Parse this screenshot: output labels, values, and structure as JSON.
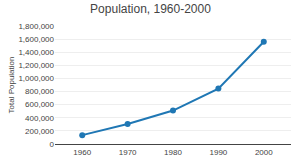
{
  "chart_data": {
    "type": "line",
    "title": "Population, 1960-2000",
    "ylabel": "Total Population",
    "x": [
      1960,
      1970,
      1980,
      1990,
      2000
    ],
    "values": [
      135000,
      305000,
      510000,
      845000,
      1560000
    ],
    "xlim": [
      1954,
      2006
    ],
    "ylim": [
      0,
      1800000
    ],
    "xticks": [
      1960,
      1970,
      1980,
      1990,
      2000
    ],
    "yticks": [
      0,
      {
        "value": 200000,
        "label": "200,000"
      },
      {
        "value": 400000,
        "label": "400,000"
      },
      {
        "value": 600000,
        "label": "600,000"
      },
      {
        "value": 800000,
        "label": "800,000"
      },
      {
        "value": 1000000,
        "label": "1,000,000"
      },
      {
        "value": 1200000,
        "label": "1,200,000"
      },
      {
        "value": 1400000,
        "label": "1,400,000"
      },
      {
        "value": 1600000,
        "label": "1,600,000"
      },
      {
        "value": 1800000,
        "label": "1,800,000"
      }
    ],
    "grid": true,
    "marker": "circle"
  }
}
